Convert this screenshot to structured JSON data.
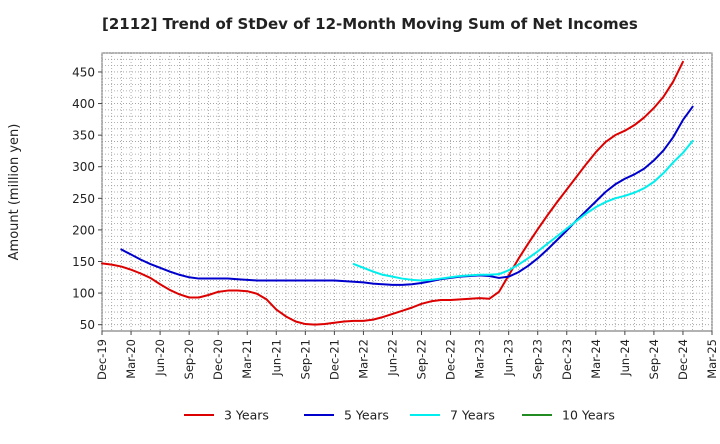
{
  "chart_data": {
    "type": "line",
    "title": "[2112]  Trend of StDev of 12-Month Moving Sum of Net Incomes",
    "ylabel": "Amount (million yen)",
    "xlabel": "",
    "ylim": [
      40,
      480
    ],
    "yticks": [
      50,
      100,
      150,
      200,
      250,
      300,
      350,
      400,
      450
    ],
    "x_tick_labels": [
      "Dec-19",
      "Mar-20",
      "Jun-20",
      "Sep-20",
      "Dec-20",
      "Mar-21",
      "Jun-21",
      "Sep-21",
      "Dec-21",
      "Mar-22",
      "Jun-22",
      "Sep-22",
      "Dec-22",
      "Mar-23",
      "Jun-23",
      "Sep-23",
      "Dec-23",
      "Mar-24",
      "Jun-24",
      "Sep-24",
      "Dec-24",
      "Mar-25"
    ],
    "grid": true,
    "legend_position": "bottom",
    "series": [
      {
        "name": "3 Years",
        "color": "#dd0000",
        "points": [
          [
            "Dec-19",
            147
          ],
          [
            "Jan-20",
            145
          ],
          [
            "Feb-20",
            142
          ],
          [
            "Mar-20",
            137
          ],
          [
            "Apr-20",
            131
          ],
          [
            "May-20",
            124
          ],
          [
            "Jun-20",
            114
          ],
          [
            "Jul-20",
            105
          ],
          [
            "Aug-20",
            98
          ],
          [
            "Sep-20",
            93
          ],
          [
            "Oct-20",
            93
          ],
          [
            "Nov-20",
            97
          ],
          [
            "Dec-20",
            102
          ],
          [
            "Jan-21",
            104
          ],
          [
            "Feb-21",
            104
          ],
          [
            "Mar-21",
            103
          ],
          [
            "Apr-21",
            99
          ],
          [
            "May-21",
            90
          ],
          [
            "Jun-21",
            74
          ],
          [
            "Jul-21",
            63
          ],
          [
            "Aug-21",
            55
          ],
          [
            "Sep-21",
            51
          ],
          [
            "Oct-21",
            50
          ],
          [
            "Nov-21",
            51
          ],
          [
            "Dec-21",
            53
          ],
          [
            "Jan-22",
            55
          ],
          [
            "Feb-22",
            56
          ],
          [
            "Mar-22",
            56
          ],
          [
            "Apr-22",
            58
          ],
          [
            "May-22",
            62
          ],
          [
            "Jun-22",
            67
          ],
          [
            "Jul-22",
            72
          ],
          [
            "Aug-22",
            77
          ],
          [
            "Sep-22",
            83
          ],
          [
            "Oct-22",
            87
          ],
          [
            "Nov-22",
            89
          ],
          [
            "Dec-22",
            89
          ],
          [
            "Jan-23",
            90
          ],
          [
            "Feb-23",
            91
          ],
          [
            "Mar-23",
            92
          ],
          [
            "Apr-23",
            91
          ],
          [
            "May-23",
            102
          ],
          [
            "Jun-23",
            128
          ],
          [
            "Jul-23",
            154
          ],
          [
            "Aug-23",
            178
          ],
          [
            "Sep-23",
            201
          ],
          [
            "Oct-23",
            223
          ],
          [
            "Nov-23",
            244
          ],
          [
            "Dec-23",
            264
          ],
          [
            "Jan-24",
            284
          ],
          [
            "Feb-24",
            304
          ],
          [
            "Mar-24",
            323
          ],
          [
            "Apr-24",
            339
          ],
          [
            "May-24",
            350
          ],
          [
            "Jun-24",
            357
          ],
          [
            "Jul-24",
            366
          ],
          [
            "Aug-24",
            378
          ],
          [
            "Sep-24",
            393
          ],
          [
            "Oct-24",
            411
          ],
          [
            "Nov-24",
            435
          ],
          [
            "Dec-24",
            466
          ]
        ]
      },
      {
        "name": "5 Years",
        "color": "#0000cc",
        "points": [
          [
            "Feb-20",
            169
          ],
          [
            "Mar-20",
            161
          ],
          [
            "Apr-20",
            153
          ],
          [
            "May-20",
            146
          ],
          [
            "Jun-20",
            140
          ],
          [
            "Jul-20",
            134
          ],
          [
            "Aug-20",
            129
          ],
          [
            "Sep-20",
            125
          ],
          [
            "Oct-20",
            123
          ],
          [
            "Nov-20",
            123
          ],
          [
            "Dec-20",
            123
          ],
          [
            "Jan-21",
            123
          ],
          [
            "Feb-21",
            122
          ],
          [
            "Mar-21",
            121
          ],
          [
            "Apr-21",
            120
          ],
          [
            "May-21",
            120
          ],
          [
            "Jun-21",
            120
          ],
          [
            "Jul-21",
            120
          ],
          [
            "Aug-21",
            120
          ],
          [
            "Sep-21",
            120
          ],
          [
            "Oct-21",
            120
          ],
          [
            "Nov-21",
            120
          ],
          [
            "Dec-21",
            120
          ],
          [
            "Jan-22",
            119
          ],
          [
            "Feb-22",
            118
          ],
          [
            "Mar-22",
            117
          ],
          [
            "Apr-22",
            115
          ],
          [
            "May-22",
            114
          ],
          [
            "Jun-22",
            113
          ],
          [
            "Jul-22",
            113
          ],
          [
            "Aug-22",
            114
          ],
          [
            "Sep-22",
            116
          ],
          [
            "Oct-22",
            119
          ],
          [
            "Nov-22",
            122
          ],
          [
            "Dec-22",
            124
          ],
          [
            "Jan-23",
            126
          ],
          [
            "Feb-23",
            127
          ],
          [
            "Mar-23",
            128
          ],
          [
            "Apr-23",
            127
          ],
          [
            "May-23",
            124
          ],
          [
            "Jun-23",
            126
          ],
          [
            "Jul-23",
            133
          ],
          [
            "Aug-23",
            143
          ],
          [
            "Sep-23",
            155
          ],
          [
            "Oct-23",
            169
          ],
          [
            "Nov-23",
            184
          ],
          [
            "Dec-23",
            199
          ],
          [
            "Jan-24",
            215
          ],
          [
            "Feb-24",
            230
          ],
          [
            "Mar-24",
            245
          ],
          [
            "Apr-24",
            260
          ],
          [
            "May-24",
            272
          ],
          [
            "Jun-24",
            281
          ],
          [
            "Jul-24",
            288
          ],
          [
            "Aug-24",
            297
          ],
          [
            "Sep-24",
            310
          ],
          [
            "Oct-24",
            326
          ],
          [
            "Nov-24",
            347
          ],
          [
            "Dec-24",
            374
          ],
          [
            "Jan-25",
            395
          ]
        ]
      },
      {
        "name": "7 Years",
        "color": "#00eeee",
        "points": [
          [
            "Feb-22",
            146
          ],
          [
            "Mar-22",
            140
          ],
          [
            "Apr-22",
            134
          ],
          [
            "May-22",
            129
          ],
          [
            "Jun-22",
            126
          ],
          [
            "Jul-22",
            123
          ],
          [
            "Aug-22",
            121
          ],
          [
            "Sep-22",
            120
          ],
          [
            "Oct-22",
            121
          ],
          [
            "Nov-22",
            123
          ],
          [
            "Dec-22",
            125
          ],
          [
            "Jan-23",
            127
          ],
          [
            "Feb-23",
            128
          ],
          [
            "Mar-23",
            129
          ],
          [
            "Apr-23",
            129
          ],
          [
            "May-23",
            130
          ],
          [
            "Jun-23",
            136
          ],
          [
            "Jul-23",
            145
          ],
          [
            "Aug-23",
            155
          ],
          [
            "Sep-23",
            166
          ],
          [
            "Oct-23",
            178
          ],
          [
            "Nov-23",
            190
          ],
          [
            "Dec-23",
            202
          ],
          [
            "Jan-24",
            214
          ],
          [
            "Feb-24",
            226
          ],
          [
            "Mar-24",
            236
          ],
          [
            "Apr-24",
            244
          ],
          [
            "May-24",
            250
          ],
          [
            "Jun-24",
            254
          ],
          [
            "Jul-24",
            259
          ],
          [
            "Aug-24",
            266
          ],
          [
            "Sep-24",
            276
          ],
          [
            "Oct-24",
            290
          ],
          [
            "Nov-24",
            307
          ],
          [
            "Dec-24",
            322
          ],
          [
            "Jan-25",
            341
          ]
        ]
      },
      {
        "name": "10 Years",
        "color": "#228b22",
        "points": []
      }
    ]
  }
}
